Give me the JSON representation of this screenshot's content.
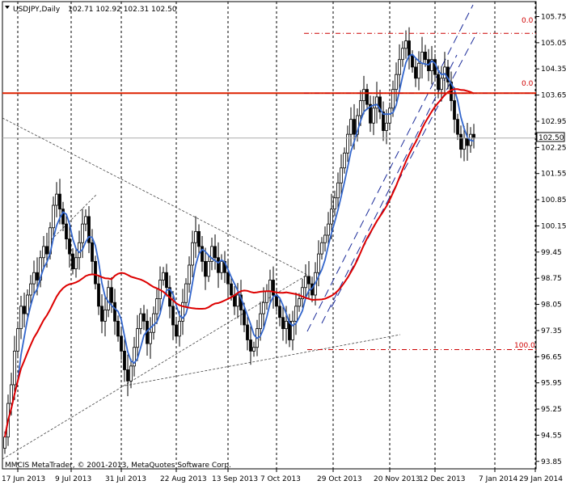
{
  "header": {
    "symbol": "USDJPY,Daily",
    "ohlc": "102.71 102.92 102.31 102.50"
  },
  "copyright": "MMCIS MetaTrader, © 2001-2013, MetaQuotes Software Corp.",
  "current_price_label": "102.50",
  "fib_labels": [
    "0.0",
    "0.0",
    "100.0"
  ],
  "colors": {
    "candle": "#000000",
    "fast_ma": "#3366cc",
    "slow_ma": "#dd0000",
    "hline": "#dd2200",
    "fib": "#cc0000",
    "channel": "#1a2a99",
    "trend": "#444444",
    "price_marker_bg": "#ffffff",
    "grid": "#000000"
  },
  "chart_data": {
    "type": "candlestick",
    "title": "USDJPY,Daily",
    "y_ticks": [
      "105.75",
      "105.05",
      "104.35",
      "103.65",
      "102.95",
      "102.25",
      "101.55",
      "100.85",
      "100.15",
      "99.45",
      "98.75",
      "98.05",
      "97.35",
      "96.65",
      "95.95",
      "95.25",
      "94.55",
      "93.85"
    ],
    "x_ticks": [
      "17 Jun 2013",
      "9 Jul 2013",
      "31 Jul 2013",
      "22 Aug 2013",
      "13 Sep 2013",
      "7 Oct 2013",
      "29 Oct 2013",
      "20 Nov 2013",
      "12 Dec 2013",
      "7 Jan 2014",
      "29 Jan 2014"
    ],
    "ylim": [
      93.65,
      106.15
    ],
    "grid": "vertical dashed",
    "bars_per_label": 16,
    "closes": [
      94.5,
      95.4,
      95.9,
      96.8,
      97.4,
      98.0,
      97.8,
      98.3,
      98.6,
      98.9,
      98.7,
      99.3,
      99.6,
      99.4,
      100.1,
      100.7,
      101.0,
      100.6,
      100.2,
      99.8,
      99.4,
      99.0,
      99.3,
      99.7,
      100.2,
      100.4,
      99.7,
      99.2,
      98.6,
      98.0,
      97.6,
      97.9,
      98.5,
      98.1,
      97.6,
      97.2,
      96.8,
      96.3,
      96.0,
      96.4,
      96.9,
      97.4,
      97.8,
      97.6,
      97.0,
      97.3,
      97.8,
      98.2,
      98.7,
      98.9,
      98.5,
      98.0,
      97.5,
      97.2,
      97.6,
      98.1,
      98.6,
      99.1,
      99.7,
      100.0,
      99.6,
      99.2,
      98.8,
      99.2,
      99.6,
      99.3,
      98.9,
      99.2,
      98.9,
      98.6,
      98.3,
      98.0,
      98.3,
      97.9,
      97.5,
      97.1,
      96.8,
      96.9,
      97.4,
      97.8,
      98.1,
      98.4,
      98.7,
      98.3,
      98.0,
      97.7,
      97.4,
      97.6,
      97.1,
      97.6,
      98.0,
      98.2,
      98.5,
      98.8,
      98.6,
      98.3,
      98.9,
      99.4,
      99.7,
      99.9,
      100.2,
      100.6,
      100.9,
      101.3,
      101.7,
      102.1,
      102.6,
      103.0,
      102.6,
      103.1,
      103.5,
      103.8,
      103.4,
      102.9,
      103.3,
      103.6,
      103.2,
      102.7,
      102.9,
      103.3,
      103.8,
      104.2,
      104.6,
      104.9,
      105.1,
      104.7,
      104.4,
      104.1,
      104.5,
      104.8,
      104.6,
      104.3,
      104.6,
      104.2,
      103.8,
      104.1,
      104.4,
      104.0,
      103.5,
      103.0,
      102.6,
      102.2,
      102.5,
      102.3,
      102.6,
      102.5
    ],
    "fast_ma_period": 5,
    "slow_ma_period": 34,
    "horizontal_line": 103.7,
    "fib_levels": [
      105.3,
      103.7,
      96.84
    ],
    "current_price": 102.5
  }
}
